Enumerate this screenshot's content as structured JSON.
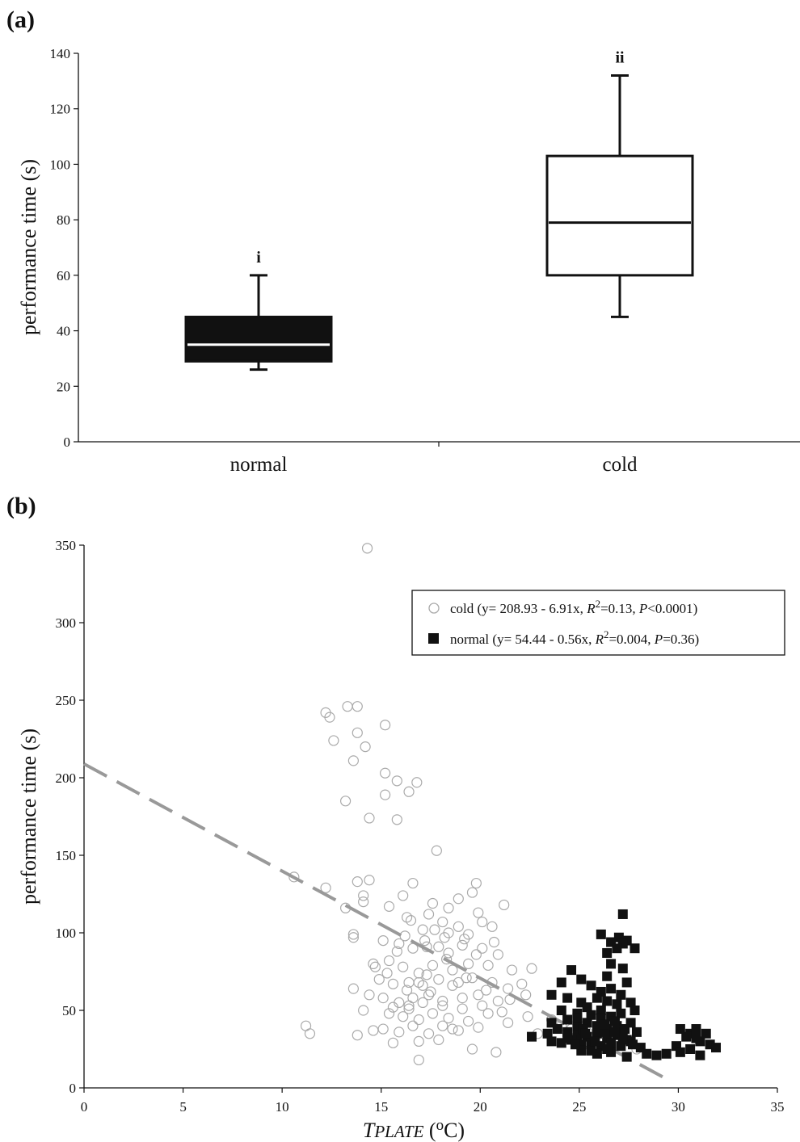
{
  "chart_data": [
    {
      "panel_label": "(a)",
      "type": "box",
      "ylabel": "performance time (s)",
      "ylim": [
        0,
        140
      ],
      "yticks": [
        "0",
        "20",
        "40",
        "60",
        "80",
        "100",
        "120",
        "140"
      ],
      "categories": [
        "normal",
        "cold"
      ],
      "boxes": [
        {
          "category": "normal",
          "whisker_low": 26,
          "q1": 29,
          "median": 35,
          "q3": 45,
          "whisker_high": 60,
          "fill": "#111111",
          "median_color": "#ffffff",
          "annotation": "i"
        },
        {
          "category": "cold",
          "whisker_low": 45,
          "q1": 60,
          "median": 79,
          "q3": 103,
          "whisker_high": 132,
          "fill": "#ffffff",
          "median_color": "#111111",
          "annotation": "ii"
        }
      ]
    },
    {
      "panel_label": "(b)",
      "type": "scatter",
      "xlabel_main": "T",
      "xlabel_sub": "PLATE",
      "xlabel_units_pre": " (",
      "xlabel_units_sup": "o",
      "xlabel_units_post": "C)",
      "ylabel": "performance time (s)",
      "xlim": [
        0,
        35
      ],
      "ylim": [
        0,
        350
      ],
      "xticks": [
        "0",
        "5",
        "10",
        "15",
        "20",
        "25",
        "30",
        "35"
      ],
      "yticks": [
        "0",
        "50",
        "100",
        "150",
        "200",
        "250",
        "300",
        "350"
      ],
      "legend_position": "top-right",
      "series": [
        {
          "name": "cold",
          "legend_parts": [
            "cold (y= 208.93 - 6.91x, ",
            "R",
            "2",
            "=0.13, ",
            "P",
            "<0.0001)"
          ],
          "marker": "open-circle",
          "color": "#aaaaaa",
          "fit": {
            "intercept": 208.93,
            "slope": -6.91,
            "x_range": [
              0,
              29.5
            ],
            "style": "dashed",
            "color": "#999999"
          },
          "points": [
            [
              14.3,
              348
            ],
            [
              12.2,
              242
            ],
            [
              12.4,
              239
            ],
            [
              13.3,
              246
            ],
            [
              13.8,
              246
            ],
            [
              12.6,
              224
            ],
            [
              13.8,
              229
            ],
            [
              15.2,
              234
            ],
            [
              13.6,
              211
            ],
            [
              14.2,
              220
            ],
            [
              15.2,
              203
            ],
            [
              15.8,
              198
            ],
            [
              16.8,
              197
            ],
            [
              16.4,
              191
            ],
            [
              15.2,
              189
            ],
            [
              13.2,
              185
            ],
            [
              14.4,
              174
            ],
            [
              15.8,
              173
            ],
            [
              17.8,
              153
            ],
            [
              10.6,
              136
            ],
            [
              13.8,
              133
            ],
            [
              14.4,
              134
            ],
            [
              12.2,
              129
            ],
            [
              14.1,
              124
            ],
            [
              14.1,
              120
            ],
            [
              13.2,
              116
            ],
            [
              13.6,
              99
            ],
            [
              13.6,
              97
            ],
            [
              11.2,
              40
            ],
            [
              11.4,
              35
            ],
            [
              13.8,
              34
            ],
            [
              14.1,
              50
            ],
            [
              14.6,
              37
            ],
            [
              15.6,
              29
            ],
            [
              16.9,
              18
            ],
            [
              18.6,
              38
            ],
            [
              19.6,
              25
            ],
            [
              20.8,
              23
            ],
            [
              16.6,
              132
            ],
            [
              19.8,
              132
            ],
            [
              15.4,
              117
            ],
            [
              16.1,
              124
            ],
            [
              17.6,
              119
            ],
            [
              18.9,
              122
            ],
            [
              19.6,
              126
            ],
            [
              21.2,
              118
            ],
            [
              16.3,
              110
            ],
            [
              17.4,
              112
            ],
            [
              18.1,
              107
            ],
            [
              20.1,
              107
            ],
            [
              17.1,
              102
            ],
            [
              18.4,
              100
            ],
            [
              19.4,
              99
            ],
            [
              20.6,
              104
            ],
            [
              15.1,
              95
            ],
            [
              15.8,
              88
            ],
            [
              16.6,
              90
            ],
            [
              17.3,
              91
            ],
            [
              18.4,
              87
            ],
            [
              19.1,
              92
            ],
            [
              20.1,
              90
            ],
            [
              20.9,
              86
            ],
            [
              14.6,
              80
            ],
            [
              15.4,
              82
            ],
            [
              16.1,
              78
            ],
            [
              16.9,
              74
            ],
            [
              17.6,
              79
            ],
            [
              18.6,
              76
            ],
            [
              19.4,
              80
            ],
            [
              20.4,
              79
            ],
            [
              21.6,
              76
            ],
            [
              22.6,
              77
            ],
            [
              14.9,
              70
            ],
            [
              15.6,
              67
            ],
            [
              16.4,
              68
            ],
            [
              17.1,
              66
            ],
            [
              17.9,
              70
            ],
            [
              18.9,
              68
            ],
            [
              19.6,
              71
            ],
            [
              20.6,
              68
            ],
            [
              21.4,
              64
            ],
            [
              22.1,
              67
            ],
            [
              13.6,
              64
            ],
            [
              14.4,
              60
            ],
            [
              15.1,
              58
            ],
            [
              15.9,
              55
            ],
            [
              16.6,
              58
            ],
            [
              17.4,
              60
            ],
            [
              18.1,
              56
            ],
            [
              19.1,
              58
            ],
            [
              19.9,
              60
            ],
            [
              20.9,
              56
            ],
            [
              22.4,
              46
            ],
            [
              23.6,
              44
            ],
            [
              15.4,
              48
            ],
            [
              16.1,
              46
            ],
            [
              16.9,
              44
            ],
            [
              17.6,
              48
            ],
            [
              18.4,
              45
            ],
            [
              19.4,
              43
            ],
            [
              20.4,
              48
            ],
            [
              21.4,
              42
            ],
            [
              15.1,
              38
            ],
            [
              15.9,
              36
            ],
            [
              16.6,
              40
            ],
            [
              17.4,
              35
            ],
            [
              18.1,
              40
            ],
            [
              18.9,
              37
            ],
            [
              19.9,
              39
            ],
            [
              22.9,
              35
            ],
            [
              24.1,
              40
            ],
            [
              24.6,
              38
            ],
            [
              25.4,
              36
            ],
            [
              26.6,
              33
            ],
            [
              27.9,
              25
            ],
            [
              16.9,
              30
            ],
            [
              17.9,
              31
            ],
            [
              15.6,
              52
            ],
            [
              16.4,
              51
            ],
            [
              17.1,
              55
            ],
            [
              18.1,
              53
            ],
            [
              19.1,
              51
            ],
            [
              20.1,
              53
            ],
            [
              21.1,
              49
            ],
            [
              15.3,
              74
            ],
            [
              16.3,
              63
            ],
            [
              17.3,
              73
            ],
            [
              18.3,
              83
            ],
            [
              19.3,
              71
            ],
            [
              20.3,
              63
            ],
            [
              16.2,
              98
            ],
            [
              17.2,
              95
            ],
            [
              18.2,
              97
            ],
            [
              19.2,
              96
            ],
            [
              19.9,
              113
            ],
            [
              18.4,
              116
            ],
            [
              17.7,
              102
            ],
            [
              16.5,
              108
            ],
            [
              16.9,
              68
            ],
            [
              16.4,
              53
            ],
            [
              17.9,
              91
            ],
            [
              14.7,
              78
            ],
            [
              15.9,
              93
            ],
            [
              18.6,
              66
            ],
            [
              19.8,
              86
            ],
            [
              20.7,
              94
            ],
            [
              21.5,
              57
            ],
            [
              22.3,
              60
            ],
            [
              18.9,
              104
            ],
            [
              17.5,
              62
            ]
          ]
        },
        {
          "name": "normal",
          "legend_parts": [
            "normal (y= 54.44 - 0.56x, ",
            "R",
            "2",
            "=0.004, ",
            "P",
            "=0.36)"
          ],
          "marker": "filled-square",
          "color": "#111111",
          "fit": {
            "intercept": 54.44,
            "slope": -0.56,
            "x_range": [
              23.3,
              31.8
            ],
            "style": "none"
          },
          "points": [
            [
              27.2,
              112
            ],
            [
              26.1,
              99
            ],
            [
              27.0,
              97
            ],
            [
              27.4,
              95
            ],
            [
              26.6,
              94
            ],
            [
              27.2,
              93
            ],
            [
              26.9,
              90
            ],
            [
              27.8,
              90
            ],
            [
              26.4,
              87
            ],
            [
              26.6,
              80
            ],
            [
              24.6,
              76
            ],
            [
              27.2,
              77
            ],
            [
              26.4,
              72
            ],
            [
              27.4,
              68
            ],
            [
              24.1,
              68
            ],
            [
              25.1,
              70
            ],
            [
              25.6,
              66
            ],
            [
              26.1,
              62
            ],
            [
              26.6,
              64
            ],
            [
              27.1,
              60
            ],
            [
              23.6,
              60
            ],
            [
              24.4,
              58
            ],
            [
              25.1,
              55
            ],
            [
              25.9,
              58
            ],
            [
              26.4,
              56
            ],
            [
              26.9,
              54
            ],
            [
              27.6,
              55
            ],
            [
              24.1,
              50
            ],
            [
              24.9,
              48
            ],
            [
              25.4,
              52
            ],
            [
              26.1,
              50
            ],
            [
              26.6,
              46
            ],
            [
              27.1,
              48
            ],
            [
              27.8,
              50
            ],
            [
              23.6,
              42
            ],
            [
              24.4,
              44
            ],
            [
              24.9,
              40
            ],
            [
              25.4,
              42
            ],
            [
              25.9,
              40
            ],
            [
              26.4,
              38
            ],
            [
              26.9,
              40
            ],
            [
              27.6,
              42
            ],
            [
              23.4,
              35
            ],
            [
              23.9,
              38
            ],
            [
              24.4,
              36
            ],
            [
              24.9,
              34
            ],
            [
              25.4,
              33
            ],
            [
              25.9,
              35
            ],
            [
              26.4,
              32
            ],
            [
              26.9,
              34
            ],
            [
              27.4,
              31
            ],
            [
              27.9,
              36
            ],
            [
              22.6,
              33
            ],
            [
              23.6,
              30
            ],
            [
              24.1,
              29
            ],
            [
              24.6,
              31
            ],
            [
              25.1,
              28
            ],
            [
              25.6,
              30
            ],
            [
              26.1,
              27
            ],
            [
              26.6,
              29
            ],
            [
              27.1,
              27
            ],
            [
              27.6,
              30
            ],
            [
              28.1,
              26
            ],
            [
              25.1,
              24
            ],
            [
              25.9,
              22
            ],
            [
              26.6,
              23
            ],
            [
              27.4,
              20
            ],
            [
              28.4,
              22
            ],
            [
              28.9,
              21
            ],
            [
              29.4,
              22
            ],
            [
              29.9,
              27
            ],
            [
              30.1,
              23
            ],
            [
              30.6,
              25
            ],
            [
              31.1,
              30
            ],
            [
              31.6,
              28
            ],
            [
              31.9,
              26
            ],
            [
              30.1,
              38
            ],
            [
              30.6,
              35
            ],
            [
              30.9,
              38
            ],
            [
              31.4,
              35
            ],
            [
              30.4,
              33
            ],
            [
              31.1,
              21
            ],
            [
              30.9,
              32
            ],
            [
              24.9,
              45
            ],
            [
              25.6,
              47
            ],
            [
              26.1,
              45
            ],
            [
              26.8,
              43
            ],
            [
              25.2,
              38
            ],
            [
              26.1,
              36
            ],
            [
              27.3,
              38
            ],
            [
              25.6,
              24
            ],
            [
              24.4,
              32
            ],
            [
              26.4,
              25
            ],
            [
              27.2,
              32
            ],
            [
              25.8,
              30
            ],
            [
              26.8,
              36
            ],
            [
              24.8,
              28
            ],
            [
              25.3,
              35
            ],
            [
              26.3,
              41
            ],
            [
              27.7,
              28
            ]
          ]
        }
      ]
    }
  ]
}
